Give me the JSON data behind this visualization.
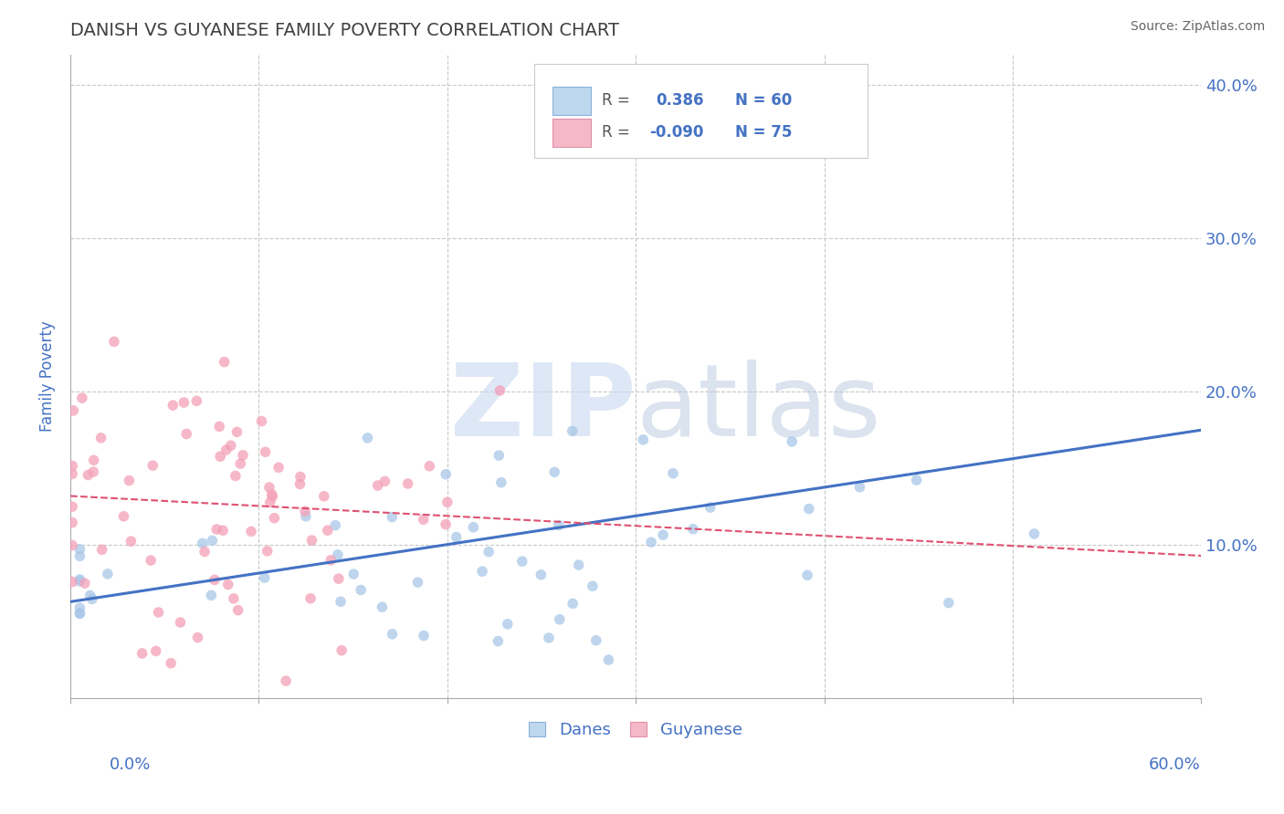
{
  "title": "DANISH VS GUYANESE FAMILY POVERTY CORRELATION CHART",
  "source": "Source: ZipAtlas.com",
  "ylabel": "Family Poverty",
  "xlim": [
    0.0,
    0.6
  ],
  "ylim": [
    0.0,
    0.42
  ],
  "ytick_values": [
    0.0,
    0.1,
    0.2,
    0.3,
    0.4
  ],
  "ytick_labels": [
    "",
    "10.0%",
    "20.0%",
    "30.0%",
    "40.0%"
  ],
  "danes_R": 0.386,
  "danes_N": 60,
  "guyanese_R": -0.09,
  "guyanese_N": 75,
  "blue_scatter_color": "#a8c8e8",
  "blue_line_color": "#4472c4",
  "pink_scatter_color": "#f4a0b8",
  "pink_line_color": "#e05070",
  "blue_legend_fill": "#bdd7ee",
  "pink_legend_fill": "#f4b8c8",
  "title_color": "#404040",
  "legend_text_color": "#4472c4",
  "axis_label_color": "#4472c4",
  "tick_label_color": "#4472c4",
  "watermark": "ZIPatlas",
  "watermark_zip_color": "#c8d8f0",
  "watermark_atlas_color": "#b0c4e0",
  "background_color": "#ffffff",
  "grid_color": "#c8c8c8",
  "blue_trend_y0": 0.063,
  "blue_trend_y1": 0.175,
  "pink_trend_y0": 0.132,
  "pink_trend_y1": 0.093
}
